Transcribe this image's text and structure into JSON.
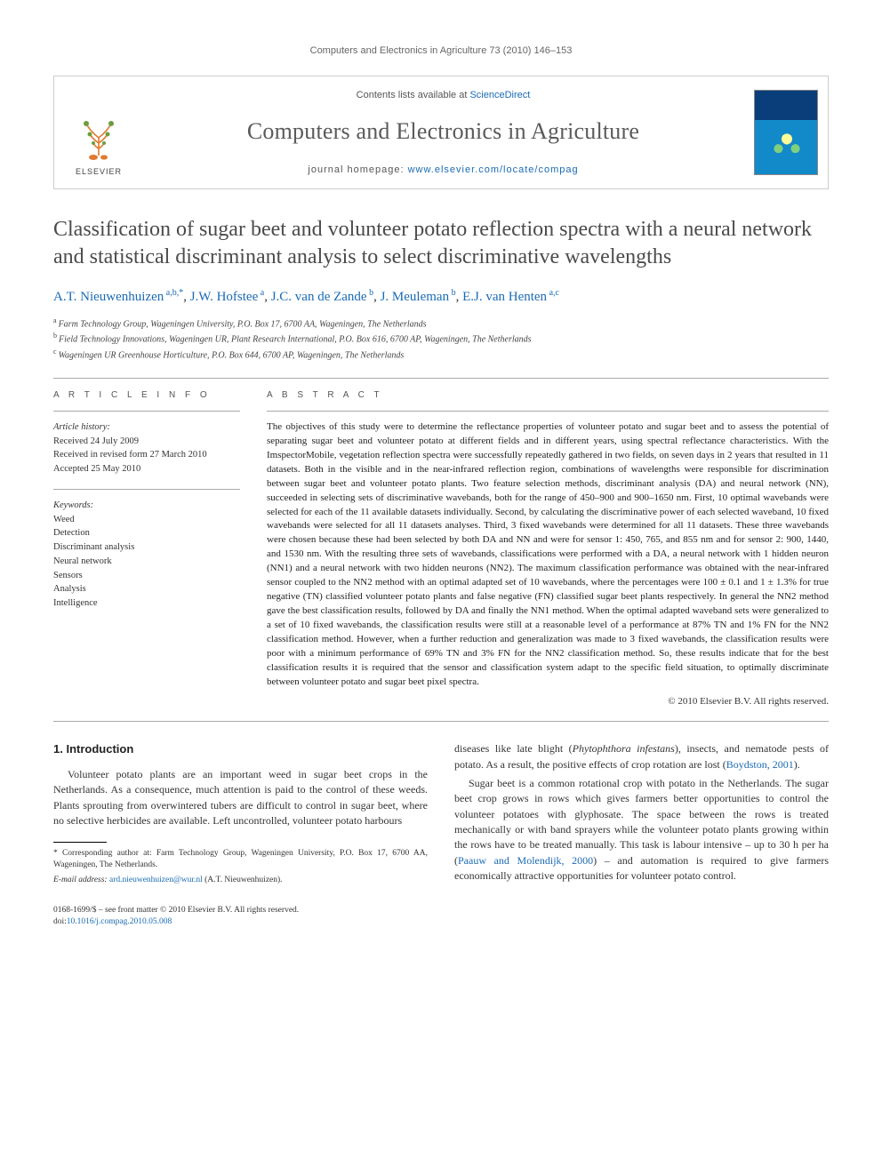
{
  "running_head": "Computers and Electronics in Agriculture 73 (2010) 146–153",
  "header": {
    "contents_prefix": "Contents lists available at ",
    "contents_link": "ScienceDirect",
    "journal_name": "Computers and Electronics in Agriculture",
    "homepage_prefix": "journal homepage: ",
    "homepage_url": "www.elsevier.com/locate/compag",
    "publisher": "ELSEVIER"
  },
  "article": {
    "title": "Classification of sugar beet and volunteer potato reflection spectra with a neural network and statistical discriminant analysis to select discriminative wavelengths",
    "authors_html": "A.T. Nieuwenhuizen|a,b,*|, J.W. Hofstee|a|, J.C. van de Zande|b|, J. Meuleman|b|, E.J. van Henten|a,c|",
    "authors": [
      {
        "name": "A.T. Nieuwenhuizen",
        "marks": "a,b,*"
      },
      {
        "name": "J.W. Hofstee",
        "marks": "a"
      },
      {
        "name": "J.C. van de Zande",
        "marks": "b"
      },
      {
        "name": "J. Meuleman",
        "marks": "b"
      },
      {
        "name": "E.J. van Henten",
        "marks": "a,c"
      }
    ],
    "affiliations": [
      {
        "mark": "a",
        "text": "Farm Technology Group, Wageningen University, P.O. Box 17, 6700 AA, Wageningen, The Netherlands"
      },
      {
        "mark": "b",
        "text": "Field Technology Innovations, Wageningen UR, Plant Research International, P.O. Box 616, 6700 AP, Wageningen, The Netherlands"
      },
      {
        "mark": "c",
        "text": "Wageningen UR Greenhouse Horticulture, P.O. Box 644, 6700 AP, Wageningen, The Netherlands"
      }
    ]
  },
  "article_info": {
    "heading": "A R T I C L E   I N F O",
    "history_label": "Article history:",
    "history": [
      "Received 24 July 2009",
      "Received in revised form 27 March 2010",
      "Accepted 25 May 2010"
    ],
    "keywords_label": "Keywords:",
    "keywords": [
      "Weed",
      "Detection",
      "Discriminant analysis",
      "Neural network",
      "Sensors",
      "Analysis",
      "Intelligence"
    ]
  },
  "abstract": {
    "heading": "A B S T R A C T",
    "text": "The objectives of this study were to determine the reflectance properties of volunteer potato and sugar beet and to assess the potential of separating sugar beet and volunteer potato at different fields and in different years, using spectral reflectance characteristics. With the ImspectorMobile, vegetation reflection spectra were successfully repeatedly gathered in two fields, on seven days in 2 years that resulted in 11 datasets. Both in the visible and in the near-infrared reflection region, combinations of wavelengths were responsible for discrimination between sugar beet and volunteer potato plants. Two feature selection methods, discriminant analysis (DA) and neural network (NN), succeeded in selecting sets of discriminative wavebands, both for the range of 450–900 and 900–1650 nm. First, 10 optimal wavebands were selected for each of the 11 available datasets individually. Second, by calculating the discriminative power of each selected waveband, 10 fixed wavebands were selected for all 11 datasets analyses. Third, 3 fixed wavebands were determined for all 11 datasets. These three wavebands were chosen because these had been selected by both DA and NN and were for sensor 1: 450, 765, and 855 nm and for sensor 2: 900, 1440, and 1530 nm. With the resulting three sets of wavebands, classifications were performed with a DA, a neural network with 1 hidden neuron (NN1) and a neural network with two hidden neurons (NN2). The maximum classification performance was obtained with the near-infrared sensor coupled to the NN2 method with an optimal adapted set of 10 wavebands, where the percentages were 100 ± 0.1 and 1 ± 1.3% for true negative (TN) classified volunteer potato plants and false negative (FN) classified sugar beet plants respectively. In general the NN2 method gave the best classification results, followed by DA and finally the NN1 method. When the optimal adapted waveband sets were generalized to a set of 10 fixed wavebands, the classification results were still at a reasonable level of a performance at 87% TN and 1% FN for the NN2 classification method. However, when a further reduction and generalization was made to 3 fixed wavebands, the classification results were poor with a minimum performance of 69% TN and 3% FN for the NN2 classification method. So, these results indicate that for the best classification results it is required that the sensor and classification system adapt to the specific field situation, to optimally discriminate between volunteer potato and sugar beet pixel spectra.",
    "copyright": "© 2010 Elsevier B.V. All rights reserved."
  },
  "body": {
    "section1_heading": "1.  Introduction",
    "p1": "Volunteer potato plants are an important weed in sugar beet crops in the Netherlands. As a consequence, much attention is paid to the control of these weeds. Plants sprouting from overwintered tubers are difficult to control in sugar beet, where no selective herbicides are available. Left uncontrolled, volunteer potato harbours",
    "p2_pre": "diseases like late blight (",
    "p2_ital": "Phytophthora infestans",
    "p2_post": "), insects, and nematode pests of potato. As a result, the positive effects of crop rotation are lost (",
    "p2_cite": "Boydston, 2001",
    "p2_end": ").",
    "p3_pre": "Sugar beet is a common rotational crop with potato in the Netherlands. The sugar beet crop grows in rows which gives farmers better opportunities to control the volunteer potatoes with glyphosate. The space between the rows is treated mechanically or with band sprayers while the volunteer potato plants growing within the rows have to be treated manually. This task is labour intensive – up to 30 h per ha (",
    "p3_cite": "Paauw and Molendijk, 2000",
    "p3_post": ") – and automation is required to give farmers economically attractive opportunities for volunteer potato control."
  },
  "footnote": {
    "corr_label": "* Corresponding author at: Farm Technology Group, Wageningen University, P.O. Box 17, 6700 AA, Wageningen, The Netherlands.",
    "email_label": "E-mail address:",
    "email": "ard.nieuwenhuizen@wur.nl",
    "email_who": "(A.T. Nieuwenhuizen)."
  },
  "footer": {
    "line1": "0168-1699/$ – see front matter © 2010 Elsevier B.V. All rights reserved.",
    "doi_label": "doi:",
    "doi": "10.1016/j.compag.2010.05.008"
  },
  "colors": {
    "link": "#1a6bb3",
    "text": "#333333",
    "muted": "#666666",
    "rule": "#aaaaaa"
  }
}
